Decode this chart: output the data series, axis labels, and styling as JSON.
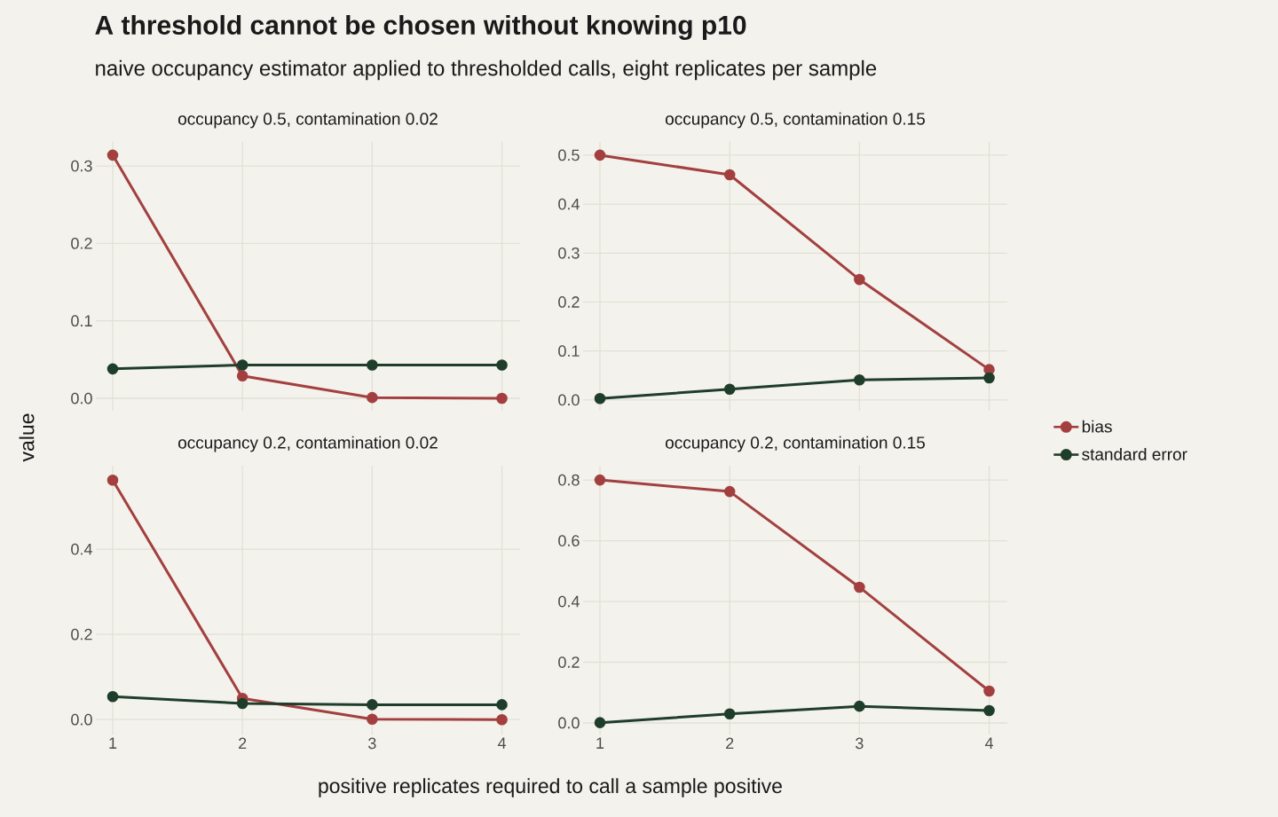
{
  "chart_data": [
    {
      "type": "line",
      "title": "occupancy 0.5, contamination 0.02",
      "annotations": [
        "A threshold cannot be chosen without knowing p10",
        "naive occupancy estimator applied to thresholded calls, eight replicates per sample"
      ],
      "ylabel": "value",
      "x": [
        1,
        2,
        3,
        4
      ],
      "xlim": [
        0.87,
        4.14
      ],
      "xticks": [
        1,
        2,
        3,
        4
      ],
      "ylim": [
        -0.016,
        0.331
      ],
      "yticks": [
        {
          "value": 0,
          "label": "0.0"
        },
        {
          "value": 0.1,
          "label": "0.1"
        },
        {
          "value": 0.2,
          "label": "0.2"
        },
        {
          "value": 0.3,
          "label": "0.3"
        }
      ],
      "tick_labels": "y",
      "grid": true,
      "marker": "circle",
      "line_style": "solid",
      "series": [
        {
          "color": "#a33f3f",
          "values": [
            0.314,
            0.029,
            0.001,
            0.0
          ]
        },
        {
          "color": "#1f3d2b",
          "values": [
            0.038,
            0.043,
            0.043,
            0.043
          ]
        }
      ]
    },
    {
      "type": "line",
      "title": "occupancy 0.5, contamination 0.15",
      "x": [
        1,
        2,
        3,
        4
      ],
      "xlim": [
        0.87,
        4.14
      ],
      "xticks": [
        1,
        2,
        3,
        4
      ],
      "ylim": [
        -0.022,
        0.527
      ],
      "yticks": [
        {
          "value": 0,
          "label": "0.0"
        },
        {
          "value": 0.1,
          "label": "0.1"
        },
        {
          "value": 0.2,
          "label": "0.2"
        },
        {
          "value": 0.3,
          "label": "0.3"
        },
        {
          "value": 0.4,
          "label": "0.4"
        },
        {
          "value": 0.5,
          "label": "0.5"
        }
      ],
      "tick_labels": "y",
      "grid": true,
      "marker": "circle",
      "line_style": "solid",
      "legend": "right",
      "series": [
        {
          "name": "bias",
          "color": "#a33f3f",
          "values": [
            0.5,
            0.46,
            0.246,
            0.062
          ]
        },
        {
          "name": "standard error",
          "color": "#1f3d2b",
          "values": [
            0.003,
            0.022,
            0.041,
            0.045
          ]
        }
      ]
    },
    {
      "type": "line",
      "title": "occupancy 0.2, contamination 0.02",
      "xlabel": "positive replicates required to call a sample positive",
      "x": [
        1,
        2,
        3,
        4
      ],
      "xlim": [
        0.87,
        4.14
      ],
      "xticks": [
        1,
        2,
        3,
        4
      ],
      "ylim": [
        -0.035,
        0.596
      ],
      "yticks": [
        {
          "value": 0,
          "label": "0.0"
        },
        {
          "value": 0.2,
          "label": "0.2"
        },
        {
          "value": 0.4,
          "label": "0.4"
        }
      ],
      "grid": true,
      "marker": "circle",
      "line_style": "solid",
      "series": [
        {
          "color": "#a33f3f",
          "values": [
            0.562,
            0.05,
            0.001,
            0.0
          ]
        },
        {
          "color": "#1f3d2b",
          "values": [
            0.054,
            0.038,
            0.035,
            0.035
          ]
        }
      ]
    },
    {
      "type": "line",
      "title": "occupancy 0.2, contamination 0.15",
      "x": [
        1,
        2,
        3,
        4
      ],
      "xlim": [
        0.87,
        4.14
      ],
      "xticks": [
        1,
        2,
        3,
        4
      ],
      "ylim": [
        -0.038,
        0.847
      ],
      "yticks": [
        {
          "value": 0,
          "label": "0.0"
        },
        {
          "value": 0.2,
          "label": "0.2"
        },
        {
          "value": 0.4,
          "label": "0.4"
        },
        {
          "value": 0.6,
          "label": "0.6"
        },
        {
          "value": 0.8,
          "label": "0.8"
        }
      ],
      "grid": true,
      "marker": "circle",
      "line_style": "solid",
      "series": [
        {
          "color": "#a33f3f",
          "values": [
            0.8,
            0.762,
            0.447,
            0.105
          ]
        },
        {
          "color": "#1f3d2b",
          "values": [
            0.001,
            0.03,
            0.055,
            0.041
          ]
        }
      ]
    }
  ]
}
